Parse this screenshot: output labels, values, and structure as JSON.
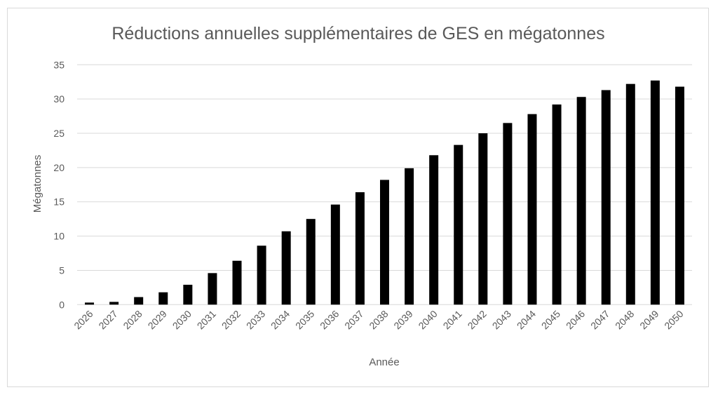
{
  "chart_data": {
    "type": "bar",
    "title": "Réductions annuelles supplémentaires de GES en mégatonnes",
    "xlabel": "Année",
    "ylabel": "Mégatonnes",
    "ylim": [
      0,
      35
    ],
    "yticks": [
      0,
      5,
      10,
      15,
      20,
      25,
      30,
      35
    ],
    "grid": true,
    "bar_color": "#000000",
    "categories": [
      "2026",
      "2027",
      "2028",
      "2029",
      "2030",
      "2031",
      "2032",
      "2033",
      "2034",
      "2035",
      "2036",
      "2037",
      "2038",
      "2039",
      "2040",
      "2041",
      "2042",
      "2043",
      "2044",
      "2045",
      "2046",
      "2047",
      "2048",
      "2049",
      "2050"
    ],
    "values": [
      0.3,
      0.4,
      1.1,
      1.8,
      2.9,
      4.6,
      6.4,
      8.6,
      10.7,
      12.5,
      14.6,
      16.4,
      18.2,
      19.9,
      21.8,
      23.3,
      25.0,
      26.5,
      27.8,
      29.2,
      30.3,
      31.3,
      32.2,
      32.7,
      31.8
    ]
  }
}
